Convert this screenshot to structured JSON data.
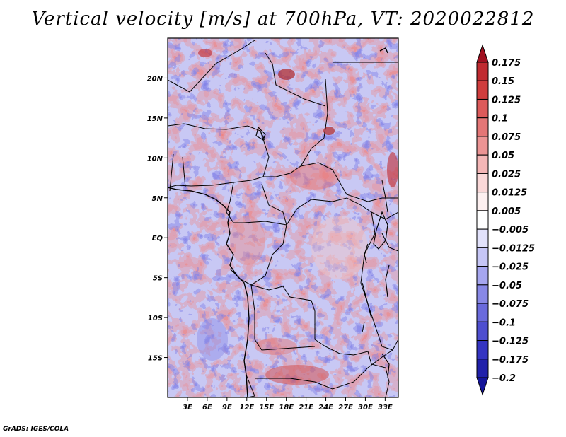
{
  "title": "Vertical velocity [m/s] at 700hPa, VT: 2020022812",
  "footer": "GrADS: IGES/COLA",
  "map": {
    "lon_range": [
      0,
      35
    ],
    "lat_range": [
      -20,
      25
    ],
    "x_ticks": [
      "3E",
      "6E",
      "9E",
      "12E",
      "15E",
      "18E",
      "21E",
      "24E",
      "27E",
      "30E",
      "33E"
    ],
    "x_tick_values": [
      3,
      6,
      9,
      12,
      15,
      18,
      21,
      24,
      27,
      30,
      33
    ],
    "y_ticks": [
      "20N",
      "15N",
      "10N",
      "5N",
      "EQ",
      "5S",
      "10S",
      "15S"
    ],
    "y_tick_values": [
      20,
      15,
      10,
      5,
      0,
      -5,
      -10,
      -15
    ]
  },
  "colorbar": {
    "labels": [
      "0.175",
      "0.15",
      "0.125",
      "0.1",
      "0.075",
      "0.05",
      "0.025",
      "0.0125",
      "0.005",
      "−0.005",
      "−0.0125",
      "−0.025",
      "−0.05",
      "−0.075",
      "−0.1",
      "−0.125",
      "−0.175",
      "−0.2"
    ],
    "colors": [
      "#a01020",
      "#c02a30",
      "#d03d3d",
      "#dc5a5a",
      "#e47676",
      "#ec9494",
      "#f4b6b6",
      "#fad8d8",
      "#fdf0f0",
      "#ffffff",
      "#e2e2fb",
      "#c6c6f6",
      "#a6a6ef",
      "#8888e6",
      "#6a6adc",
      "#4e4ed0",
      "#3434c2",
      "#2020aa",
      "#14149a"
    ]
  }
}
